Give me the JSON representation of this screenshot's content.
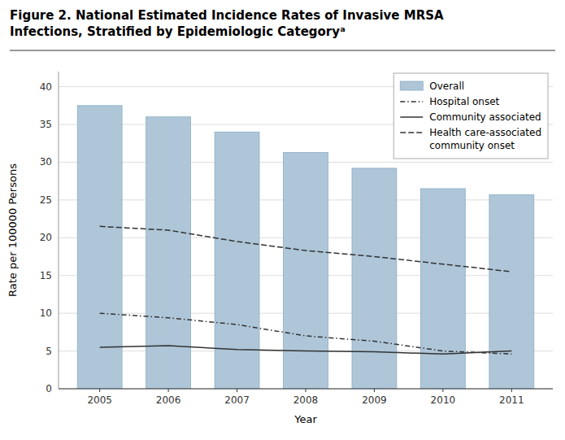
{
  "chart_data": {
    "type": "bar",
    "title": "Figure 2. National Estimated Incidence Rates of Invasive MRSA\nInfections, Stratified by Epidemiologic Categoryᵃ",
    "x_label": "Year",
    "y_label": "Rate per 100000 Persons",
    "x": [
      2005,
      2006,
      2007,
      2008,
      2009,
      2010,
      2011
    ],
    "xlim": [
      2004.4,
      2011.6
    ],
    "xticks": [
      2005,
      2006,
      2007,
      2008,
      2009,
      2010,
      2011
    ],
    "ylim": [
      0,
      42
    ],
    "yticks": [
      0,
      5,
      10,
      15,
      20,
      25,
      30,
      35,
      40
    ],
    "grid": true,
    "legend": "upper right",
    "series": [
      {
        "name": "Overall",
        "type": "bar",
        "color": "#aec6d8",
        "values": [
          37.5,
          36.0,
          34.0,
          31.3,
          29.2,
          26.5,
          25.7
        ]
      },
      {
        "name": "Hospital onset",
        "type": "line",
        "line_style": "dashdot",
        "color": "#333333",
        "values": [
          10.0,
          9.4,
          8.5,
          7.0,
          6.3,
          5.0,
          4.6
        ]
      },
      {
        "name": "Community associated",
        "type": "line",
        "line_style": "solid",
        "color": "#333333",
        "values": [
          5.5,
          5.7,
          5.2,
          5.0,
          4.9,
          4.6,
          5.0
        ]
      },
      {
        "name": "Health care-associated\ncommunity onset",
        "type": "line",
        "line_style": "dashed",
        "color": "#333333",
        "values": [
          21.5,
          21.0,
          19.5,
          18.3,
          17.5,
          16.5,
          15.5
        ]
      }
    ]
  }
}
